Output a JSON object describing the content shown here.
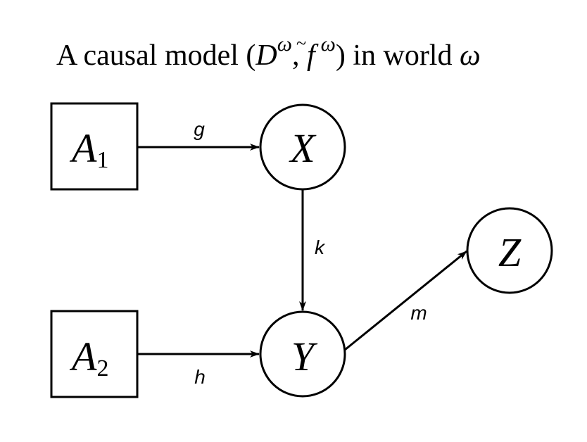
{
  "title": {
    "prefix": "A causal model (",
    "D": "D",
    "omega": "ω",
    "comma": ", ",
    "f": "f",
    "tilde": "~",
    "close": ")",
    "middle": " in world ",
    "world": "ω"
  },
  "nodes": {
    "a1": {
      "letter": "A",
      "sub": "1",
      "shape": "box"
    },
    "a2": {
      "letter": "A",
      "sub": "2",
      "shape": "box"
    },
    "x": {
      "letter": "X",
      "shape": "circle"
    },
    "y": {
      "letter": "Y",
      "shape": "circle"
    },
    "z": {
      "letter": "Z",
      "shape": "circle"
    }
  },
  "edges": {
    "g": {
      "from": "A1",
      "to": "X",
      "label": "g"
    },
    "h": {
      "from": "A2",
      "to": "Y",
      "label": "h"
    },
    "k": {
      "from": "X",
      "to": "Y",
      "label": "k"
    },
    "m": {
      "from": "Y",
      "to": "Z",
      "label": "m"
    }
  },
  "colors": {
    "stroke": "#000000",
    "background": "#ffffff"
  }
}
